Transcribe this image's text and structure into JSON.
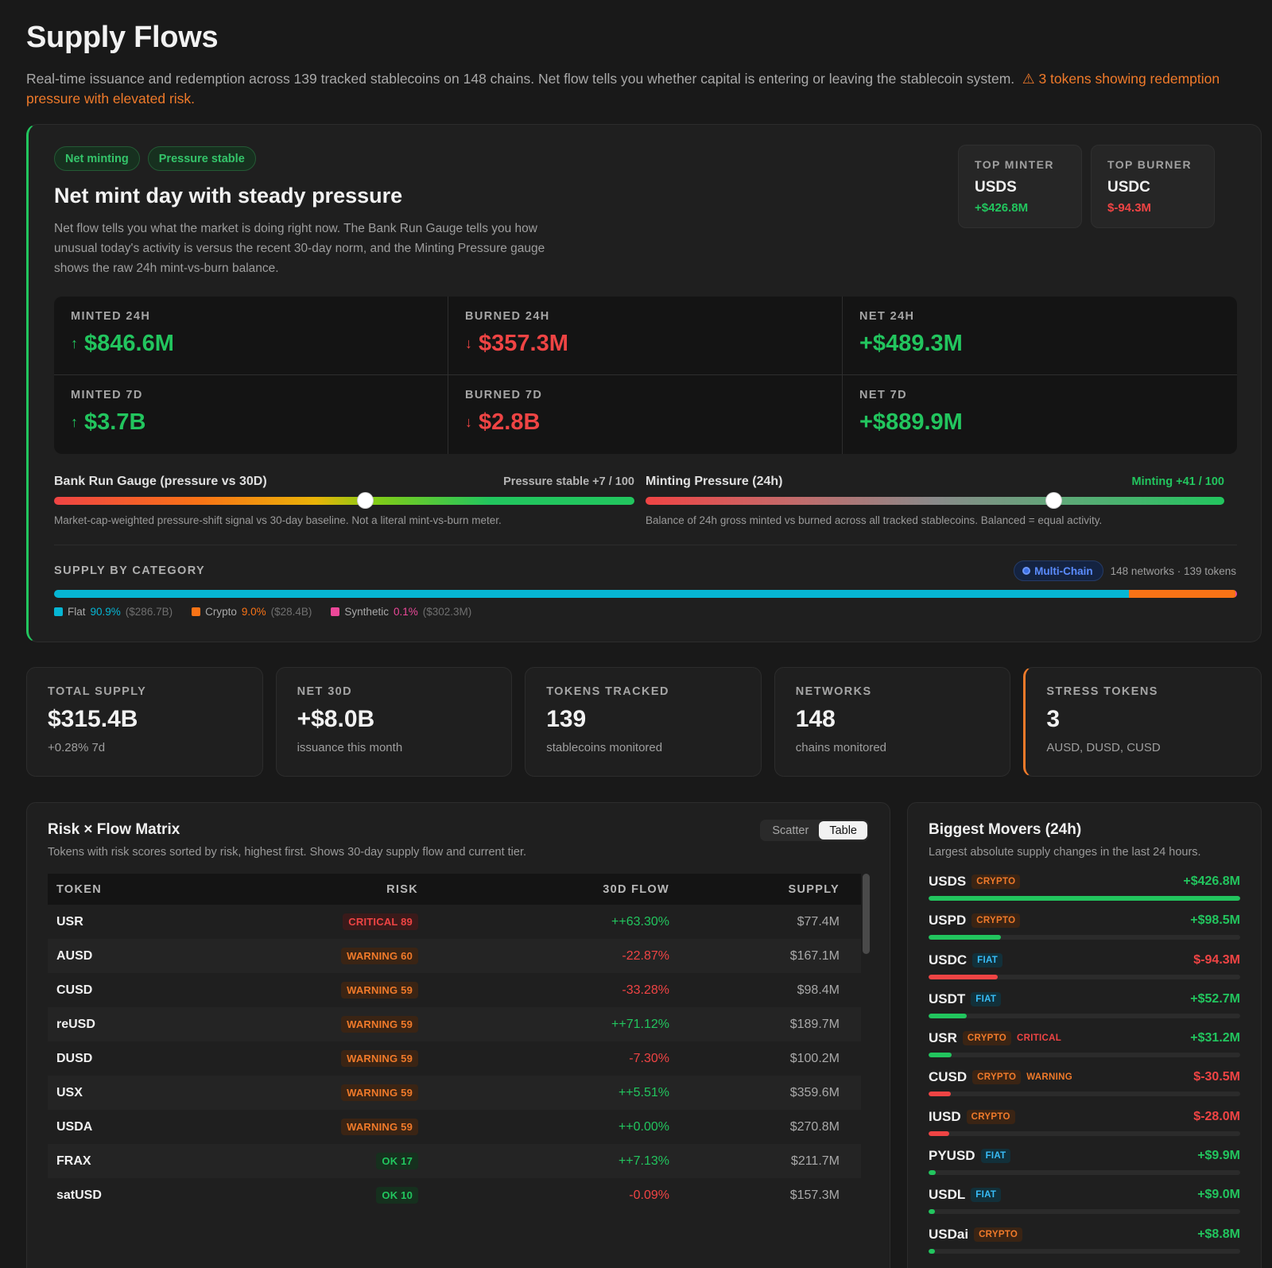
{
  "page": {
    "title": "Supply Flows",
    "intro": "Real-time issuance and redemption across 139 tracked stablecoins on 148 chains. Net flow tells you whether capital is entering or leaving the stablecoin system.",
    "warning": "⚠ 3 tokens showing redemption pressure with elevated risk."
  },
  "hero": {
    "pills": [
      "Net minting",
      "Pressure stable"
    ],
    "title": "Net mint day with steady pressure",
    "description": "Net flow tells you what the market is doing right now. The Bank Run Gauge tells you how unusual today's activity is versus the recent 30-day norm, and the Minting Pressure gauge shows the raw 24h mint-vs-burn balance.",
    "top_minter": {
      "label": "TOP MINTER",
      "token": "USDS",
      "amount": "+$426.8M"
    },
    "top_burner": {
      "label": "TOP BURNER",
      "token": "USDC",
      "amount": "$-94.3M"
    },
    "stats": [
      {
        "label": "MINTED 24H",
        "value": "$846.6M",
        "arrow": "↑",
        "tone": "green"
      },
      {
        "label": "BURNED 24H",
        "value": "$357.3M",
        "arrow": "↓",
        "tone": "red"
      },
      {
        "label": "NET 24H",
        "value": "+$489.3M",
        "arrow": "",
        "tone": "green"
      },
      {
        "label": "MINTED 7D",
        "value": "$3.7B",
        "arrow": "↑",
        "tone": "green"
      },
      {
        "label": "BURNED 7D",
        "value": "$2.8B",
        "arrow": "↓",
        "tone": "red"
      },
      {
        "label": "NET 7D",
        "value": "+$889.9M",
        "arrow": "",
        "tone": "green"
      }
    ],
    "bank_run": {
      "title": "Bank Run Gauge (pressure vs 30D)",
      "reading": "Pressure stable +7 / 100",
      "level": 0.535,
      "note": "Market-cap-weighted pressure-shift signal vs 30-day baseline. Not a literal mint-vs-burn meter."
    },
    "minting_pressure": {
      "title": "Minting Pressure (24h)",
      "reading": "Minting +41 / 100",
      "level": 0.705,
      "note": "Balance of 24h gross minted vs burned across all tracked stablecoins. Balanced = equal activity."
    },
    "category": {
      "label": "SUPPLY BY CATEGORY",
      "multichain": "Multi-Chain",
      "networks_tokens": "148 networks · 139 tokens",
      "items": [
        {
          "name": "Flat",
          "pct": "90.9%",
          "abs": "($286.7B)",
          "share": 90.9,
          "color": "#06b6d4"
        },
        {
          "name": "Crypto",
          "pct": "9.0%",
          "abs": "($28.4B)",
          "share": 9.0,
          "color": "#f97316"
        },
        {
          "name": "Synthetic",
          "pct": "0.1%",
          "abs": "($302.3M)",
          "share": 0.15,
          "color": "#ec4899"
        }
      ]
    }
  },
  "kpis": [
    {
      "label": "TOTAL SUPPLY",
      "value": "$315.4B",
      "sub": "+0.28% 7d",
      "tone": ""
    },
    {
      "label": "NET 30D",
      "value": "+$8.0B",
      "sub": "issuance this month",
      "tone": "green"
    },
    {
      "label": "TOKENS TRACKED",
      "value": "139",
      "sub": "stablecoins monitored",
      "tone": ""
    },
    {
      "label": "NETWORKS",
      "value": "148",
      "sub": "chains monitored",
      "tone": ""
    },
    {
      "label": "STRESS TOKENS",
      "value": "3",
      "sub": "AUSD, DUSD, CUSD",
      "tone": "orange"
    }
  ],
  "matrix": {
    "title": "Risk × Flow Matrix",
    "subtitle": "Tokens with risk scores sorted by risk, highest first. Shows 30-day supply flow and current tier.",
    "toggle": [
      "Scatter",
      "Table"
    ],
    "columns": [
      "TOKEN",
      "RISK",
      "30D FLOW",
      "SUPPLY"
    ],
    "rows": [
      {
        "token": "USR",
        "risk": "CRITICAL 89",
        "tier": "crit",
        "flow": "++63.30%",
        "dir": "green",
        "supply": "$77.4M"
      },
      {
        "token": "AUSD",
        "risk": "WARNING 60",
        "tier": "warn",
        "flow": "-22.87%",
        "dir": "red",
        "supply": "$167.1M"
      },
      {
        "token": "CUSD",
        "risk": "WARNING 59",
        "tier": "warn",
        "flow": "-33.28%",
        "dir": "red",
        "supply": "$98.4M"
      },
      {
        "token": "reUSD",
        "risk": "WARNING 59",
        "tier": "warn",
        "flow": "++71.12%",
        "dir": "green",
        "supply": "$189.7M"
      },
      {
        "token": "DUSD",
        "risk": "WARNING 59",
        "tier": "warn",
        "flow": "-7.30%",
        "dir": "red",
        "supply": "$100.2M"
      },
      {
        "token": "USX",
        "risk": "WARNING 59",
        "tier": "warn",
        "flow": "++5.51%",
        "dir": "green",
        "supply": "$359.6M"
      },
      {
        "token": "USDA",
        "risk": "WARNING 59",
        "tier": "warn",
        "flow": "++0.00%",
        "dir": "green",
        "supply": "$270.8M"
      },
      {
        "token": "FRAX",
        "risk": "OK 17",
        "tier": "ok",
        "flow": "++7.13%",
        "dir": "green",
        "supply": "$211.7M"
      },
      {
        "token": "satUSD",
        "risk": "OK 10",
        "tier": "ok",
        "flow": "-0.09%",
        "dir": "red",
        "supply": "$157.3M"
      }
    ]
  },
  "movers": {
    "title": "Biggest Movers (24h)",
    "subtitle": "Largest absolute supply changes in the last 24 hours.",
    "rows": [
      {
        "token": "USDS",
        "type": "CRYPTO",
        "risk": "",
        "amount": "+$426.8M",
        "dir": "green",
        "share": 1.0
      },
      {
        "token": "USPD",
        "type": "CRYPTO",
        "risk": "",
        "amount": "+$98.5M",
        "dir": "green",
        "share": 0.231
      },
      {
        "token": "USDC",
        "type": "FIAT",
        "risk": "",
        "amount": "$-94.3M",
        "dir": "red",
        "share": 0.221
      },
      {
        "token": "USDT",
        "type": "FIAT",
        "risk": "",
        "amount": "+$52.7M",
        "dir": "green",
        "share": 0.123
      },
      {
        "token": "USR",
        "type": "CRYPTO",
        "risk": "CRITICAL",
        "amount": "+$31.2M",
        "dir": "green",
        "share": 0.073
      },
      {
        "token": "CUSD",
        "type": "CRYPTO",
        "risk": "WARNING",
        "amount": "$-30.5M",
        "dir": "red",
        "share": 0.071
      },
      {
        "token": "IUSD",
        "type": "CRYPTO",
        "risk": "",
        "amount": "$-28.0M",
        "dir": "red",
        "share": 0.066
      },
      {
        "token": "PYUSD",
        "type": "FIAT",
        "risk": "",
        "amount": "+$9.9M",
        "dir": "green",
        "share": 0.023
      },
      {
        "token": "USDL",
        "type": "FIAT",
        "risk": "",
        "amount": "+$9.0M",
        "dir": "green",
        "share": 0.021
      },
      {
        "token": "USDai",
        "type": "CRYPTO",
        "risk": "",
        "amount": "+$8.8M",
        "dir": "green",
        "share": 0.021
      }
    ]
  }
}
